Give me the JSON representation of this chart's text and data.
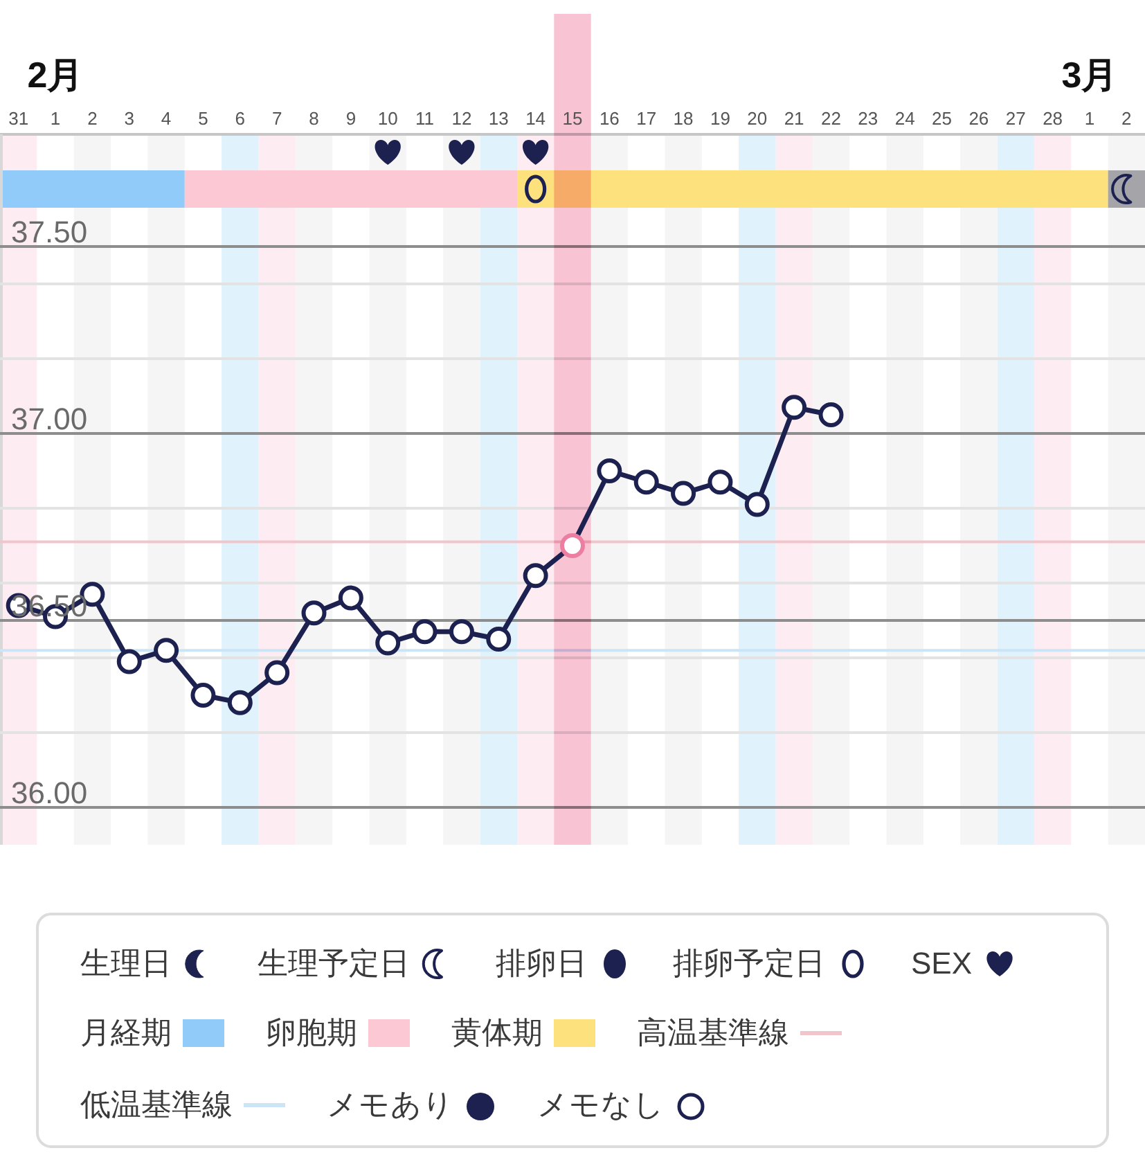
{
  "chart_data": {
    "type": "line",
    "x": [
      "--01-31",
      "--02-01",
      "--02-02",
      "--02-03",
      "--02-04",
      "--02-05",
      "--02-06",
      "--02-07",
      "--02-08",
      "--02-09",
      "--02-10",
      "--02-11",
      "--02-12",
      "--02-13",
      "--02-14",
      "--02-15",
      "--02-16",
      "--02-17",
      "--02-18",
      "--02-19",
      "--02-20",
      "--02-21",
      "--02-22"
    ],
    "xlim": [
      "--01-30T12:00",
      "--03-02T12:00"
    ],
    "xticks": [
      {
        "value": "--01-31",
        "label": "31"
      },
      {
        "value": "--02-01",
        "label": "1"
      },
      {
        "value": "--02-02",
        "label": "2"
      },
      {
        "value": "--02-03",
        "label": "3"
      },
      {
        "value": "--02-04",
        "label": "4"
      },
      {
        "value": "--02-05",
        "label": "5"
      },
      {
        "value": "--02-06",
        "label": "6"
      },
      {
        "value": "--02-07",
        "label": "7"
      },
      {
        "value": "--02-08",
        "label": "8"
      },
      {
        "value": "--02-09",
        "label": "9"
      },
      {
        "value": "--02-10",
        "label": "10"
      },
      {
        "value": "--02-11",
        "label": "11"
      },
      {
        "value": "--02-12",
        "label": "12"
      },
      {
        "value": "--02-13",
        "label": "13"
      },
      {
        "value": "--02-14",
        "label": "14"
      },
      {
        "value": "--02-15",
        "label": "15"
      },
      {
        "value": "--02-16",
        "label": "16"
      },
      {
        "value": "--02-17",
        "label": "17"
      },
      {
        "value": "--02-18",
        "label": "18"
      },
      {
        "value": "--02-19",
        "label": "19"
      },
      {
        "value": "--02-20",
        "label": "20"
      },
      {
        "value": "--02-21",
        "label": "21"
      },
      {
        "value": "--02-22",
        "label": "22"
      },
      {
        "value": "--02-23",
        "label": "23"
      },
      {
        "value": "--02-24",
        "label": "24"
      },
      {
        "value": "--02-25",
        "label": "25"
      },
      {
        "value": "--02-26",
        "label": "26"
      },
      {
        "value": "--02-27",
        "label": "27"
      },
      {
        "value": "--02-28",
        "label": "28"
      },
      {
        "value": "--03-01",
        "label": "1"
      },
      {
        "value": "--03-02",
        "label": "2"
      }
    ],
    "x2lim": [
      "--01-30T12:00",
      "--03-02T12:00"
    ],
    "x2ticks": [
      {
        "value": "--02-01",
        "label": "2月"
      },
      {
        "value": "--03-01",
        "label": "3月"
      }
    ],
    "ylim": [
      35.9,
      37.8
    ],
    "yticks": [
      {
        "value": 36,
        "label": "36.00"
      },
      {
        "value": 36.2,
        "label": null
      },
      {
        "value": 36.4,
        "label": null
      },
      {
        "value": 36.5,
        "label": "36.50"
      },
      {
        "value": 36.6,
        "label": null
      },
      {
        "value": 36.8,
        "label": null
      },
      {
        "value": 37,
        "label": "37.00"
      },
      {
        "value": 37.2,
        "label": null
      },
      {
        "value": 37.4,
        "label": null
      },
      {
        "value": 37.5,
        "label": "37.50"
      }
    ],
    "grid": "y",
    "marker": "circle",
    "legend": "bottom",
    "series": [
      {
        "name": "メモあり",
        "type": "scatter",
        "color": "#1c2150",
        "values": [
          null,
          null,
          null,
          null,
          null,
          null,
          null,
          null,
          null,
          null,
          null,
          null,
          null,
          null,
          null,
          null,
          null,
          null,
          null,
          null,
          null,
          null,
          null
        ]
      },
      {
        "name": "メモなし",
        "color": "#1c2150",
        "colors": [
          "#1c2150",
          "#1c2150",
          "#1c2150",
          "#1c2150",
          "#1c2150",
          "#1c2150",
          "#1c2150",
          "#1c2150",
          "#1c2150",
          "#1c2150",
          "#1c2150",
          "#1c2150",
          "#1c2150",
          "#1c2150",
          "#1c2150",
          "#ec7fa1",
          "#1c2150",
          "#1c2150",
          "#1c2150",
          "#1c2150",
          "#1c2150",
          "#1c2150",
          "#1c2150"
        ],
        "values": [
          36.54,
          36.51,
          36.57,
          36.39,
          36.42,
          36.3,
          36.28,
          36.36,
          36.52,
          36.56,
          36.44,
          36.47,
          36.47,
          36.45,
          36.62,
          36.7,
          36.9,
          36.87,
          36.84,
          36.87,
          36.81,
          37.07,
          37.05
        ]
      }
    ],
    "bands": [
      {
        "axis": "x",
        "from": "--01-30T12:00",
        "to": "--01-31T12:00",
        "color": "#fdedf2"
      },
      {
        "axis": "x",
        "from": "--02-06T12:00",
        "to": "--02-07T12:00",
        "color": "#fdedf2"
      },
      {
        "axis": "x",
        "from": "--02-13T12:00",
        "to": "--02-14T12:00",
        "color": "#fdedf2"
      },
      {
        "axis": "x",
        "from": "--02-20T12:00",
        "to": "--02-21T12:00",
        "color": "#fdedf2"
      },
      {
        "axis": "x",
        "from": "--02-27T12:00",
        "to": "--02-28T12:00",
        "color": "#fdedf2"
      },
      {
        "axis": "x",
        "from": "--02-05T12:00",
        "to": "--02-06T12:00",
        "color": "#e0f3fc"
      },
      {
        "axis": "x",
        "from": "--02-12T12:00",
        "to": "--02-13T12:00",
        "color": "#e0f3fc"
      },
      {
        "axis": "x",
        "from": "--02-19T12:00",
        "to": "--02-20T12:00",
        "color": "#e0f3fc"
      },
      {
        "axis": "x",
        "from": "--02-26T12:00",
        "to": "--02-27T12:00",
        "color": "#e0f3fc"
      },
      {
        "axis": "x",
        "from": "--02-01T12:00",
        "to": "--02-02T12:00",
        "color": "#f5f5f5"
      },
      {
        "axis": "x",
        "from": "--02-03T12:00",
        "to": "--02-04T12:00",
        "color": "#f5f5f5"
      },
      {
        "axis": "x",
        "from": "--02-07T12:00",
        "to": "--02-08T12:00",
        "color": "#f5f5f5"
      },
      {
        "axis": "x",
        "from": "--02-09T12:00",
        "to": "--02-10T12:00",
        "color": "#f5f5f5"
      },
      {
        "axis": "x",
        "from": "--02-11T12:00",
        "to": "--02-12T12:00",
        "color": "#f5f5f5"
      },
      {
        "axis": "x",
        "from": "--02-15T12:00",
        "to": "--02-16T12:00",
        "color": "#f5f5f5"
      },
      {
        "axis": "x",
        "from": "--02-17T12:00",
        "to": "--02-18T12:00",
        "color": "#f5f5f5"
      },
      {
        "axis": "x",
        "from": "--02-21T12:00",
        "to": "--02-22T12:00",
        "color": "#f5f5f5"
      },
      {
        "axis": "x",
        "from": "--02-23T12:00",
        "to": "--02-24T12:00",
        "color": "#f5f5f5"
      },
      {
        "axis": "x",
        "from": "--02-25T12:00",
        "to": "--02-26T12:00",
        "color": "#f5f5f5"
      },
      {
        "axis": "x",
        "from": "--03-01T12:00",
        "to": "--03-02T12:00",
        "color": "#f5f5f5"
      },
      {
        "axis": "x",
        "from": "--01-30T12:00",
        "to": "--02-04T12:00",
        "label": "月経期",
        "color": "#90cbf9"
      },
      {
        "axis": "x",
        "from": "--02-04T12:00",
        "to": "--02-13T12:00",
        "label": "卵胞期",
        "color": "#fbc8d3"
      },
      {
        "axis": "x",
        "from": "--02-13T12:00",
        "to": "--03-01T12:00",
        "label": "黄体期",
        "color": "#fde17d"
      }
    ],
    "ref_lines": [
      {
        "axis": "y",
        "value": 36.71,
        "label": "高温基準線",
        "color": "#f1c5cc"
      },
      {
        "axis": "y",
        "value": 36.42,
        "label": "低温基準線",
        "color": "#cbe5f7"
      },
      {
        "axis": "x",
        "value": "--02-15",
        "color": "#f8c3d3"
      }
    ],
    "annotations": [
      "生理日",
      "生理予定日",
      "排卵日",
      "排卵予定日",
      "SEX"
    ]
  }
}
